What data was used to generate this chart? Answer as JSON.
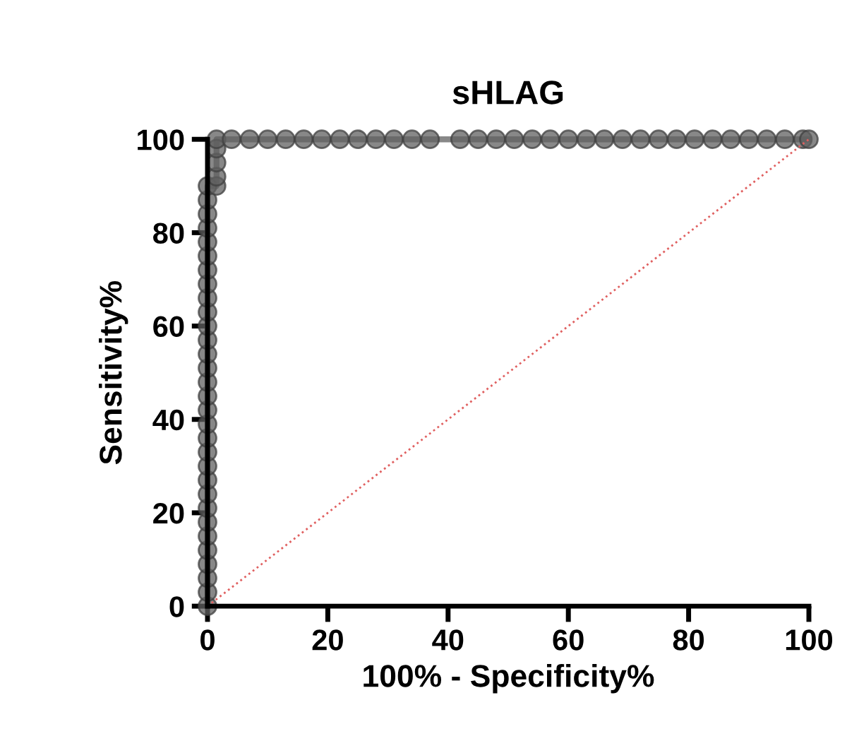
{
  "chart_data": {
    "type": "line",
    "title": "sHLAG",
    "xlabel": "100% - Specificity%",
    "ylabel": "Sensitivity%",
    "xlim": [
      0,
      100
    ],
    "ylim": [
      0,
      100
    ],
    "xticks": [
      0,
      20,
      40,
      60,
      80,
      100
    ],
    "yticks": [
      0,
      20,
      40,
      60,
      80,
      100
    ],
    "grid": false,
    "legend": false,
    "series": [
      {
        "color": "#606060",
        "marker": "circle",
        "line_style": "solid",
        "x": [
          0,
          0,
          0,
          0,
          0,
          0,
          0,
          0,
          0,
          0,
          0,
          0,
          0,
          0,
          0,
          0,
          0,
          0,
          0,
          0,
          0,
          0,
          0,
          0,
          0,
          0,
          0,
          0,
          0,
          0,
          0,
          1.5,
          1.5,
          1.5,
          1.5,
          1.5,
          4,
          7,
          10,
          13,
          16,
          19,
          22,
          25,
          28,
          31,
          34,
          37,
          42,
          45,
          48,
          51,
          54,
          57,
          60,
          63,
          66,
          69,
          72,
          75,
          78,
          81,
          84,
          87,
          90,
          93,
          96,
          99,
          100
        ],
        "values": [
          0,
          3,
          6,
          9,
          12,
          15,
          18,
          21,
          24,
          27,
          30,
          33,
          36,
          39,
          42,
          45,
          48,
          51,
          54,
          57,
          60,
          63,
          66,
          69,
          72,
          75,
          78,
          81,
          84,
          87,
          90,
          90,
          92,
          95,
          98,
          100,
          100,
          100,
          100,
          100,
          100,
          100,
          100,
          100,
          100,
          100,
          100,
          100,
          100,
          100,
          100,
          100,
          100,
          100,
          100,
          100,
          100,
          100,
          100,
          100,
          100,
          100,
          100,
          100,
          100,
          100,
          100,
          100,
          100
        ]
      },
      {
        "color": "#e06060",
        "marker": "none",
        "line_style": "dotted",
        "x": [
          0,
          100
        ],
        "values": [
          0,
          100
        ]
      }
    ]
  }
}
